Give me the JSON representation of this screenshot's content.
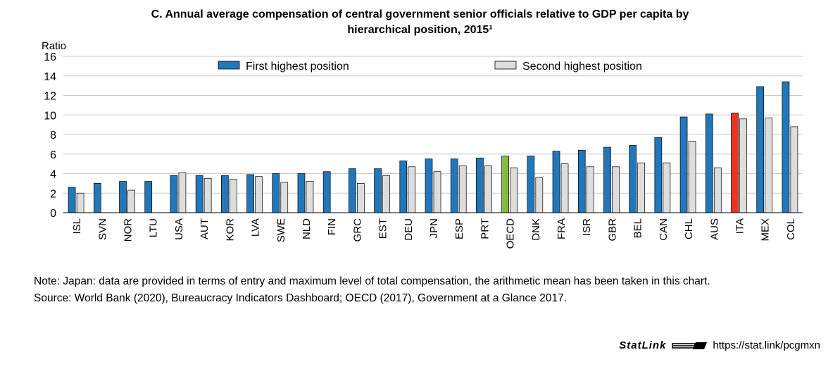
{
  "title_line1": "C. Annual average compensation of central government senior officials relative to GDP per capita by",
  "title_line2": "hierarchical position, 2015¹",
  "note": "Note:  Japan: data are provided in terms of entry and maximum level of total compensation, the arithmetic mean has been taken in this chart.",
  "source": "Source: World Bank (2020), Bureaucracy Indicators Dashboard; OECD (2017), Government at a Glance 2017.",
  "statlink": {
    "brand": "StatLink",
    "url": "https://stat.link/pcgmxn",
    "logo_icon": "oecd-statlink-logo-icon"
  },
  "colors": {
    "first": "#2277bb",
    "second": "#dddddd",
    "oecd": "#88bb44",
    "ita": "#ee3322"
  },
  "chart_data": {
    "type": "bar",
    "ylabel": "Ratio",
    "ylim": [
      0,
      16
    ],
    "yticks": [
      0,
      2,
      4,
      6,
      8,
      10,
      12,
      14,
      16
    ],
    "grid": true,
    "legend_position": "top",
    "categories": [
      "ISL",
      "SVN",
      "NOR",
      "LTU",
      "USA",
      "AUT",
      "KOR",
      "LVA",
      "SWE",
      "NLD",
      "FIN",
      "GRC",
      "EST",
      "DEU",
      "JPN",
      "ESP",
      "PRT",
      "OECD",
      "DNK",
      "FRA",
      "ISR",
      "GBR",
      "BEL",
      "CAN",
      "CHL",
      "AUS",
      "ITA",
      "MEX",
      "COL"
    ],
    "highlight": {
      "OECD": "oecd",
      "ITA": "ita"
    },
    "series": [
      {
        "name": "First highest position",
        "values": [
          2.6,
          3.0,
          3.2,
          3.2,
          3.8,
          3.8,
          3.8,
          3.9,
          4.0,
          4.0,
          4.2,
          4.5,
          4.5,
          5.3,
          5.5,
          5.5,
          5.6,
          5.8,
          5.8,
          6.3,
          6.4,
          6.7,
          6.9,
          7.7,
          9.8,
          10.1,
          10.2,
          12.9,
          13.4
        ]
      },
      {
        "name": "Second highest position",
        "values": [
          2.0,
          null,
          2.3,
          null,
          4.1,
          3.5,
          3.4,
          3.7,
          3.1,
          3.2,
          null,
          3.0,
          3.8,
          4.7,
          4.2,
          4.8,
          4.8,
          4.6,
          3.6,
          5.0,
          4.7,
          4.7,
          5.1,
          5.1,
          7.3,
          4.6,
          9.6,
          9.7,
          8.8
        ]
      }
    ]
  }
}
